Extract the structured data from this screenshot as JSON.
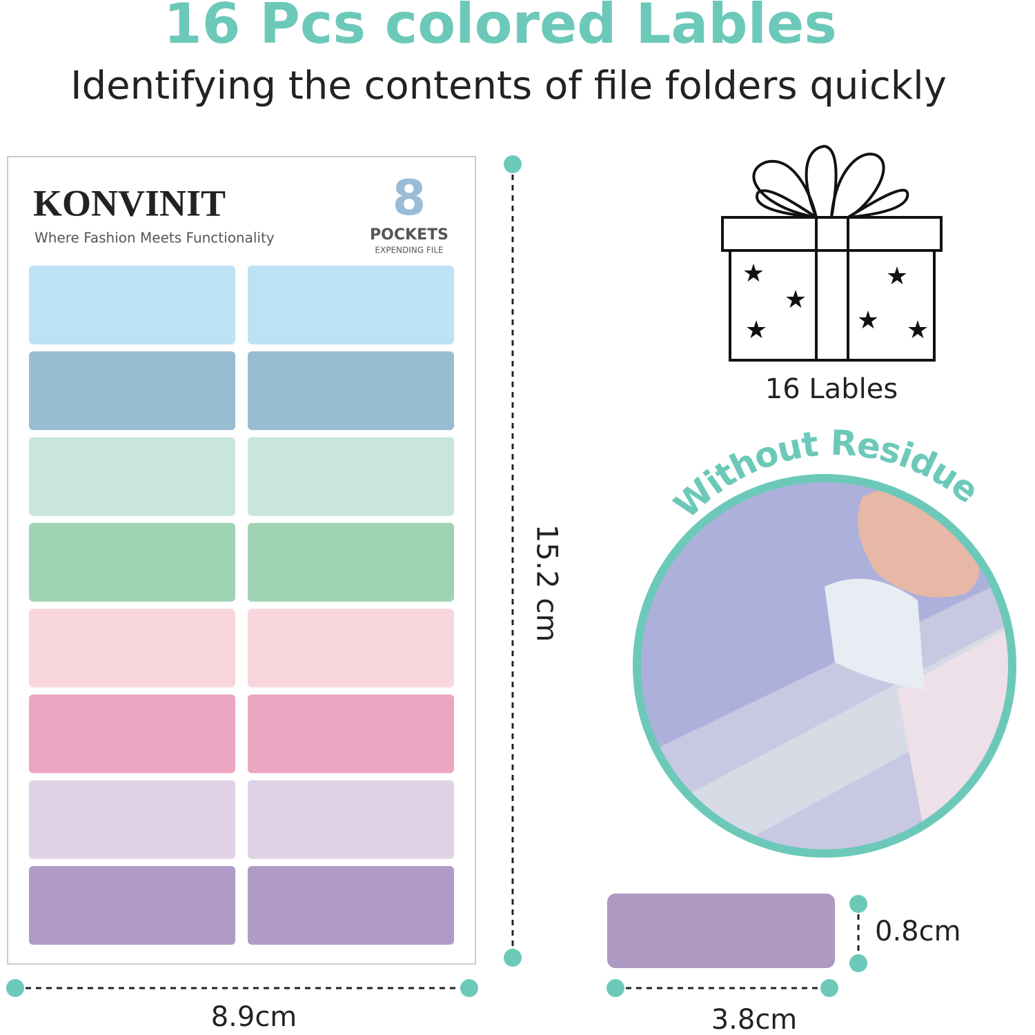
{
  "header": {
    "title": "16 Pcs colored Lables",
    "subtitle": "Identifying the contents of file folders quickly"
  },
  "sheet": {
    "brand": "KONVINIT",
    "tagline": "Where Fashion Meets Functionality",
    "badge_number": "8",
    "badge_title": "POCKETS",
    "badge_subtitle": "EXPENDING FILE"
  },
  "dimensions": {
    "sheet_height": "15.2 cm",
    "sheet_width": "8.9cm",
    "label_height": "0.8cm",
    "label_width": "3.8cm"
  },
  "gift": {
    "caption": "16 Lables"
  },
  "photo": {
    "caption": "Without Residue"
  }
}
